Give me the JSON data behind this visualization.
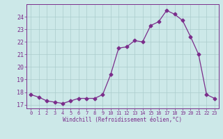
{
  "x": [
    0,
    1,
    2,
    3,
    4,
    5,
    6,
    7,
    8,
    9,
    10,
    11,
    12,
    13,
    14,
    15,
    16,
    17,
    18,
    19,
    20,
    21,
    22,
    23
  ],
  "y": [
    17.8,
    17.6,
    17.3,
    17.2,
    17.1,
    17.3,
    17.5,
    17.5,
    17.5,
    17.8,
    19.4,
    21.5,
    21.6,
    22.1,
    22.0,
    23.3,
    23.6,
    24.5,
    24.2,
    23.7,
    22.4,
    21.0,
    17.8,
    17.5
  ],
  "line_color": "#7b2d8b",
  "marker": "D",
  "markersize": 2.5,
  "bg_color": "#cce8e8",
  "grid_color": "#aacccc",
  "xlabel": "Windchill (Refroidissement éolien,°C)",
  "xlabel_color": "#7b2d8b",
  "tick_color": "#7b2d8b",
  "ylim": [
    16.7,
    25.0
  ],
  "yticks": [
    17,
    18,
    19,
    20,
    21,
    22,
    23,
    24
  ],
  "xticks": [
    0,
    1,
    2,
    3,
    4,
    5,
    6,
    7,
    8,
    9,
    10,
    11,
    12,
    13,
    14,
    15,
    16,
    17,
    18,
    19,
    20,
    21,
    22,
    23
  ]
}
